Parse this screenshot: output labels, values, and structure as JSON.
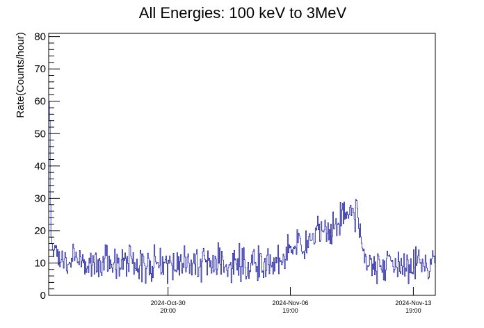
{
  "chart_data": {
    "type": "line",
    "title": "All Energies:  100 keV to 3MeV",
    "ylabel": "Rate(Counts/hour)",
    "xlabel": "",
    "ylim": [
      0,
      81
    ],
    "yticks": [
      0,
      10,
      20,
      30,
      40,
      50,
      60,
      70,
      80
    ],
    "xlim": [
      "2024-10-24 01:00",
      "2024-11-15 01:00"
    ],
    "xticks": [
      {
        "at": "2024-10-30 20:00",
        "date": "2024-Oct-30",
        "time": "20:00"
      },
      {
        "at": "2024-11-06 19:00",
        "date": "2024-Nov-06",
        "time": "19:00"
      },
      {
        "at": "2024-11-13 19:00",
        "date": "2024-Nov-13",
        "time": "19:00"
      }
    ],
    "grid": false,
    "legend": "none",
    "series": [
      {
        "color": "#000099",
        "binning": "hourly",
        "typical_range": [
          5,
          15
        ],
        "mean": 10,
        "x": [
          "2024-10-24 01:00",
          "2024-10-24 02:00",
          "2024-10-24 03:00",
          "2024-10-24 04:00",
          "2024-10-24 05:00",
          "2024-10-24 08:00",
          "2024-10-24 12:00",
          "2024-10-24 18:00",
          "2024-10-25 06:00",
          "2024-10-26 00:00",
          "2024-10-31 00:00",
          "2024-11-06 00:00",
          "2024-11-10 14:00",
          "2024-11-10 15:00",
          "2024-11-11 00:00",
          "2024-11-14 00:00",
          "2024-11-15 00:00"
        ],
        "values": [
          60,
          54,
          28,
          18,
          16,
          14,
          12,
          11,
          10,
          10,
          10,
          10,
          27,
          24,
          10,
          10,
          10
        ]
      }
    ]
  }
}
